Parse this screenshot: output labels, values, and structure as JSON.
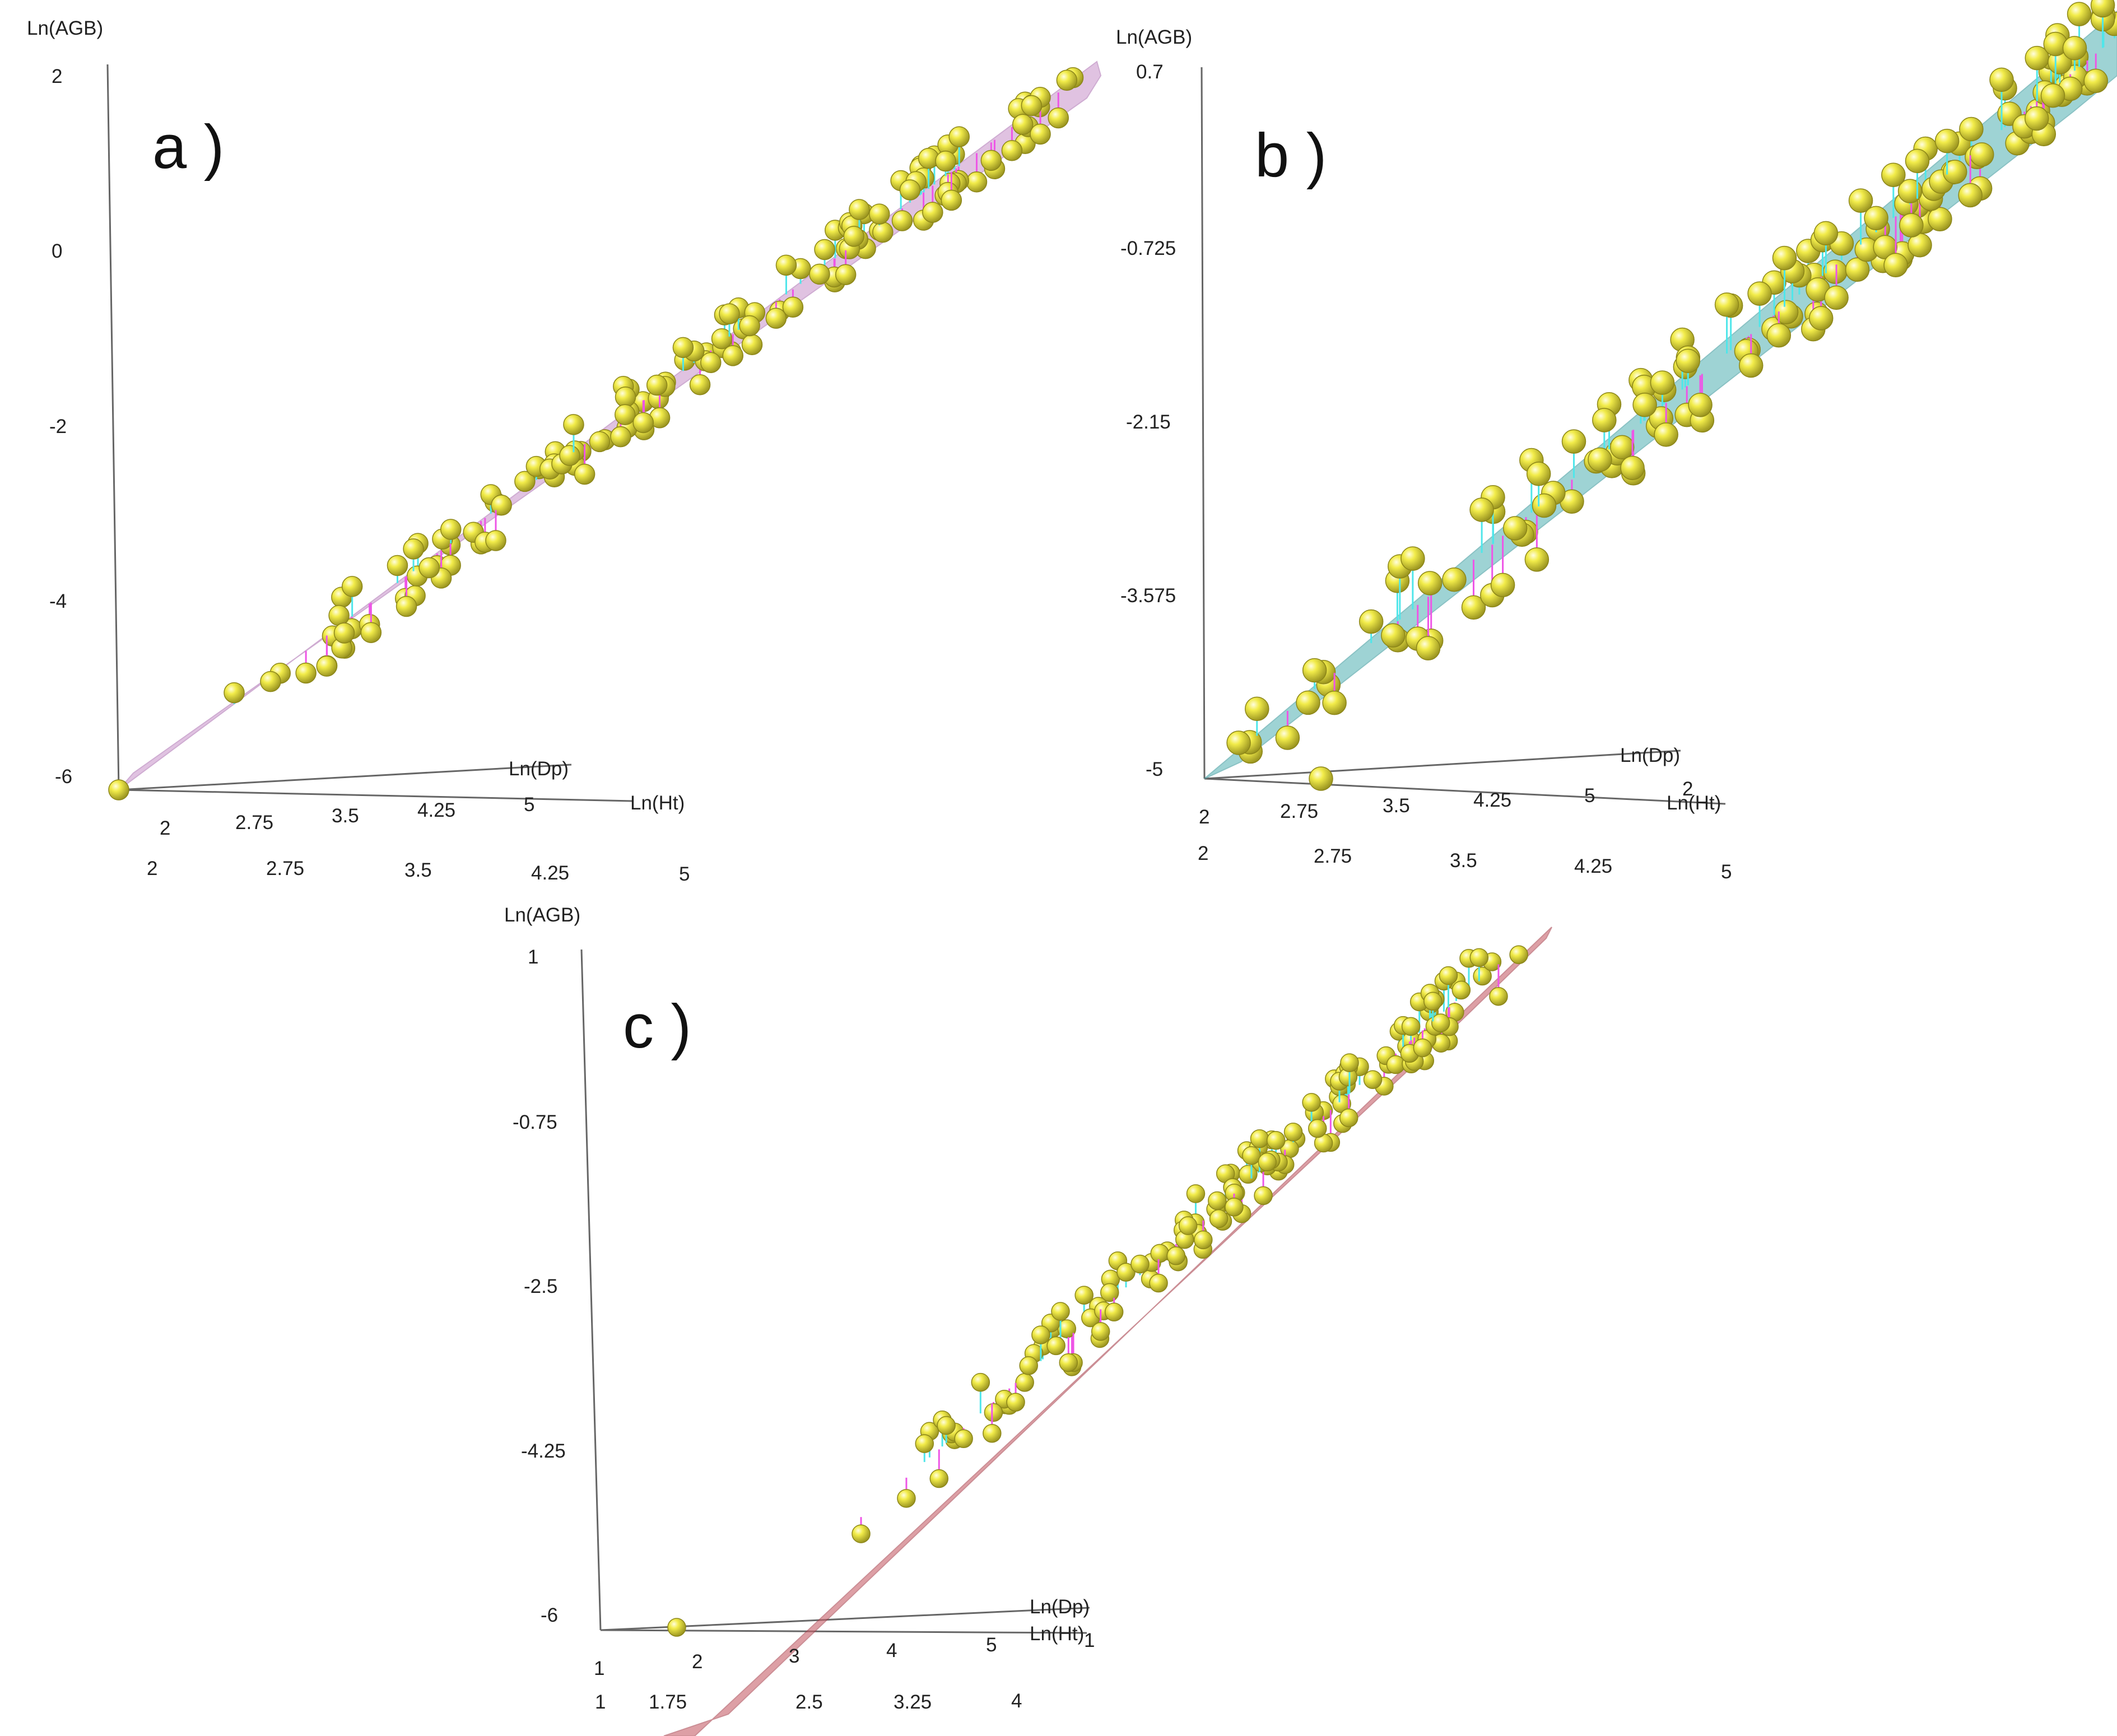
{
  "figure": {
    "panels": [
      {
        "label": "a )",
        "surface_color": "#c792c9",
        "surface_edge": "#a86aae",
        "point_color": "#f2ec4a",
        "residual_pos_color": "#4fe6ea",
        "residual_neg_color": "#ee55e6"
      },
      {
        "label": "b )",
        "surface_color": "#5fb7b9",
        "surface_edge": "#3e9a9e",
        "point_color": "#f2ec4a",
        "residual_pos_color": "#4fe6ea",
        "residual_neg_color": "#ee55e6"
      },
      {
        "label": "c )",
        "surface_color": "#c8606a",
        "surface_edge": "#a94450",
        "point_color": "#f2ec4a",
        "residual_pos_color": "#4fe6ea",
        "residual_neg_color": "#ee55e6"
      }
    ]
  },
  "chart_data": [
    {
      "type": "scatter",
      "subtype": "3d-scatter-with-fitted-surface",
      "title": "a )",
      "zlabel": "Ln(AGB)",
      "xlabel": "Ln(Dp)",
      "ylabel": "Ln(Ht)",
      "z_ticks": [
        "2",
        "0",
        "-2",
        "-4",
        "-6"
      ],
      "zlim": [
        -6,
        2
      ],
      "x_ticks": [
        "2",
        "2.75",
        "3.5",
        "4.25",
        "5"
      ],
      "y_ticks": [
        "2",
        "2.75",
        "3.5",
        "4.25",
        "5"
      ],
      "xlim": [
        2,
        5
      ],
      "ylim": [
        2,
        5
      ],
      "point_count": 150
    },
    {
      "type": "scatter",
      "subtype": "3d-scatter-with-fitted-surface",
      "title": "b )",
      "zlabel": "Ln(AGB)",
      "xlabel": "Ln(Dp)",
      "ylabel": "Ln(Ht)",
      "z_ticks": [
        "0.7",
        "-0.725",
        "-2.15",
        "-3.575",
        "-5"
      ],
      "zlim": [
        -5,
        0.7
      ],
      "x_ticks": [
        "2",
        "2.75",
        "3.5",
        "4.25",
        "5"
      ],
      "y_ticks": [
        "2",
        "2.75",
        "3.5",
        "4.25",
        "5"
      ],
      "extra_y_tick": "2",
      "xlim": [
        2,
        5
      ],
      "ylim": [
        2,
        5
      ],
      "point_count": 150
    },
    {
      "type": "scatter",
      "subtype": "3d-scatter-with-fitted-surface",
      "title": "c )",
      "zlabel": "Ln(AGB)",
      "xlabel": "Ln(Dp)",
      "ylabel": "Ln(Ht)",
      "z_ticks": [
        "1",
        "-0.75",
        "-2.5",
        "-4.25",
        "-6"
      ],
      "zlim": [
        -6,
        1
      ],
      "x_ticks": [
        "1",
        "2",
        "3",
        "4",
        "5"
      ],
      "y_ticks": [
        "1",
        "1.75",
        "2.5",
        "3.25",
        "4"
      ],
      "extra_y_tick": "1",
      "xlim": [
        1,
        5
      ],
      "ylim": [
        1,
        4
      ],
      "point_count": 150
    }
  ]
}
